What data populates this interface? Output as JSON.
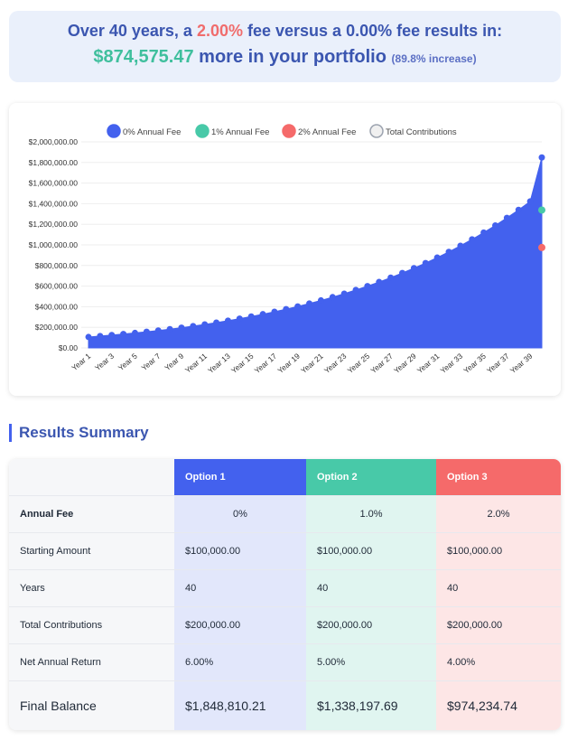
{
  "banner": {
    "prefix": "Over 40 years, a ",
    "fee_high": "2.00%",
    "mid": " fee versus a ",
    "fee_low": "0.00%",
    "suffix": " fee results in:",
    "amount": "$874,575.47",
    "amount_suffix": " more in your portfolio",
    "increase": "(89.8% increase)"
  },
  "colors": {
    "option1": "#4361ee",
    "option2": "#48c9a8",
    "option3": "#f56a6a",
    "accent_text": "#3b56b0"
  },
  "chart_data": {
    "type": "area",
    "legend": [
      "0% Annual Fee",
      "1% Annual Fee",
      "2% Annual Fee",
      "Total Contributions"
    ],
    "legend_colors": [
      "#4361ee",
      "#48c9a8",
      "#f56a6a",
      "#dddddd"
    ],
    "legend_position": "top",
    "y_ticks": [
      "$0.00",
      "$200,000.00",
      "$400,000.00",
      "$600,000.00",
      "$800,000.00",
      "$1,000,000.00",
      "$1,200,000.00",
      "$1,400,000.00",
      "$1,600,000.00",
      "$1,800,000.00",
      "$2,000,000.00"
    ],
    "x_ticks": [
      "Year 1",
      "Year 3",
      "Year 5",
      "Year 7",
      "Year 9",
      "Year 11",
      "Year 13",
      "Year 15",
      "Year 17",
      "Year 19",
      "Year 21",
      "Year 23",
      "Year 25",
      "Year 27",
      "Year 29",
      "Year 31",
      "Year 33",
      "Year 35",
      "Year 37",
      "Year 39"
    ],
    "ylim": [
      0,
      2000000
    ],
    "grid": true,
    "series": [
      {
        "name": "0% Annual Fee",
        "values": [
          106000,
          114860,
          125242,
          134756,
          145342,
          156862,
          169249,
          182544,
          196792,
          212038,
          228331,
          245719,
          264256,
          283996,
          304997,
          327319,
          351029,
          376194,
          402890,
          431195,
          461193,
          492971,
          526625,
          562255,
          599968,
          639875,
          682091,
          726744,
          773966,
          823898,
          876686,
          932484,
          991453,
          1053761,
          1119586,
          1189111,
          1262531,
          1340051,
          1421889,
          1848810
        ]
      },
      {
        "name": "1% Annual Fee",
        "values": [
          1338198
        ],
        "end_only": true
      },
      {
        "name": "2% Annual Fee",
        "values": [
          974235
        ],
        "end_only": true
      }
    ]
  },
  "summary": {
    "title": "Results Summary",
    "headers": [
      "",
      "Option 1",
      "Option 2",
      "Option 3"
    ],
    "rows": [
      {
        "label": "Annual Fee",
        "values": [
          "0%",
          "1.0%",
          "2.0%"
        ]
      },
      {
        "label": "Starting Amount",
        "values": [
          "$100,000.00",
          "$100,000.00",
          "$100,000.00"
        ]
      },
      {
        "label": "Years",
        "values": [
          "40",
          "40",
          "40"
        ]
      },
      {
        "label": "Total Contributions",
        "values": [
          "$200,000.00",
          "$200,000.00",
          "$200,000.00"
        ]
      },
      {
        "label": "Net Annual Return",
        "values": [
          "6.00%",
          "5.00%",
          "4.00%"
        ]
      },
      {
        "label": "Final Balance",
        "values": [
          "$1,848,810.21",
          "$1,338,197.69",
          "$974,234.74"
        ]
      }
    ]
  }
}
